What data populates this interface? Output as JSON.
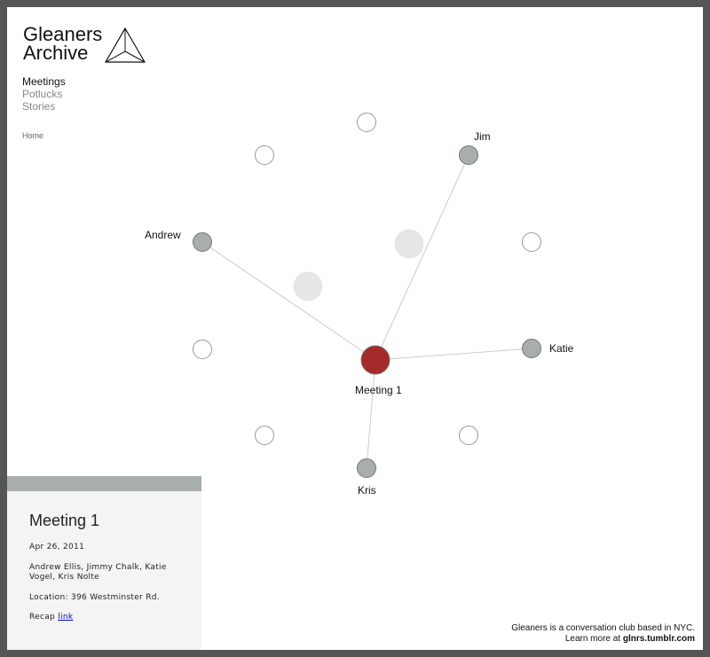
{
  "site": {
    "title_line1": "Gleaners",
    "title_line2": "Archive"
  },
  "nav": {
    "items": [
      {
        "label": "Meetings",
        "active": true
      },
      {
        "label": "Potlucks",
        "active": false
      },
      {
        "label": "Stories",
        "active": false
      }
    ],
    "home": "Home"
  },
  "graph": {
    "center": {
      "label": "Meeting 1",
      "color": "#a52a2a"
    },
    "people": [
      {
        "label": "Jim"
      },
      {
        "label": "Andrew"
      },
      {
        "label": "Katie"
      },
      {
        "label": "Kris"
      }
    ],
    "colors": {
      "person": "#a8aea9",
      "ghost": "#e6e6e6",
      "edge": "#cccccc"
    }
  },
  "panel": {
    "title": "Meeting 1",
    "date": "Apr 26, 2011",
    "attendees": "Andrew Ellis, Jimmy Chalk, Katie Vogel, Kris Nolte",
    "location": "Location: 396 Westminster Rd.",
    "recap_label": "Recap",
    "recap_link": "link"
  },
  "footer": {
    "line1": "Gleaners is a conversation club based in NYC.",
    "line2_prefix": "Learn more at",
    "line2_link": "glnrs.tumblr.com"
  }
}
